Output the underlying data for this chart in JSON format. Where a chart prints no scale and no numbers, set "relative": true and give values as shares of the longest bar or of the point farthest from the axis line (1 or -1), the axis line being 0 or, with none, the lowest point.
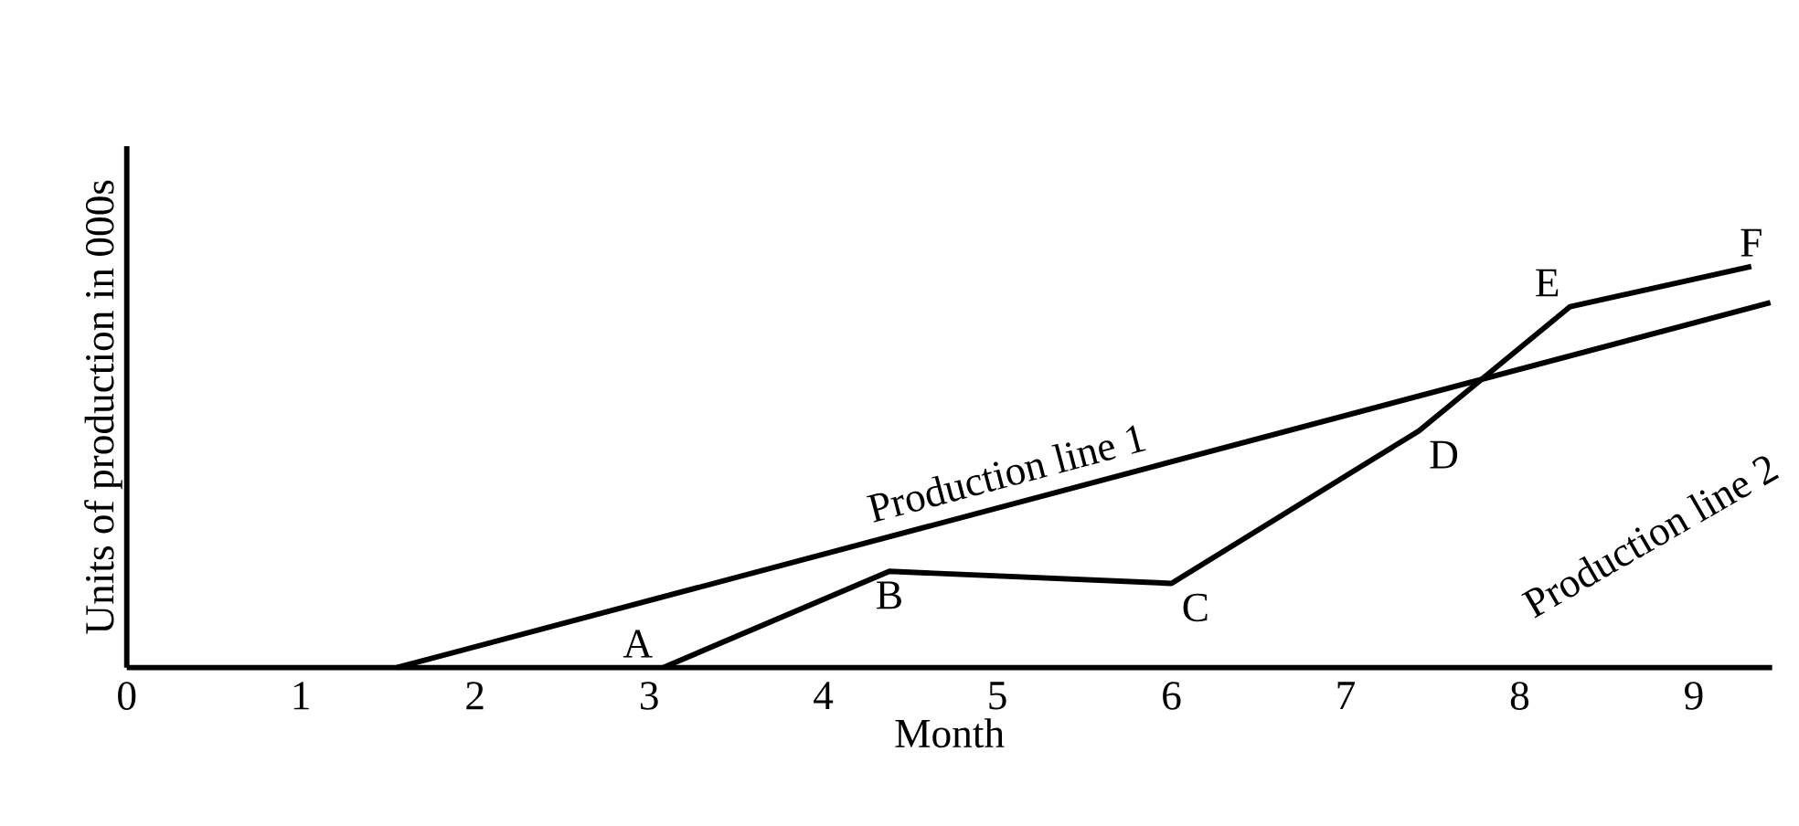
{
  "chart_data": {
    "type": "line",
    "xlabel": "Month",
    "ylabel": "Units of production in 000s",
    "relative": true,
    "xlim": [
      0,
      9.45
    ],
    "xticks": [
      0,
      1,
      2,
      3,
      4,
      5,
      6,
      7,
      8,
      9
    ],
    "series": [
      {
        "name": "Production line 1",
        "color": "#000000",
        "x": [
          1.55,
          9.44
        ],
        "values": [
          0,
          0.91
        ]
      },
      {
        "name": "Production line 2",
        "color": "#000000",
        "x": [
          3.08,
          4.38,
          6.0,
          7.42,
          8.29,
          9.33
        ],
        "values": [
          0,
          0.24,
          0.21,
          0.59,
          0.9,
          1.0
        ]
      }
    ],
    "annotations": [
      {
        "text": "A",
        "x": 3.08,
        "y": 0
      },
      {
        "text": "B",
        "x": 4.38,
        "y": 0.24
      },
      {
        "text": "C",
        "x": 6.0,
        "y": 0.21
      },
      {
        "text": "D",
        "x": 7.42,
        "y": 0.59
      },
      {
        "text": "E",
        "x": 8.29,
        "y": 0.9
      },
      {
        "text": "F",
        "x": 9.33,
        "y": 1.0
      }
    ]
  }
}
